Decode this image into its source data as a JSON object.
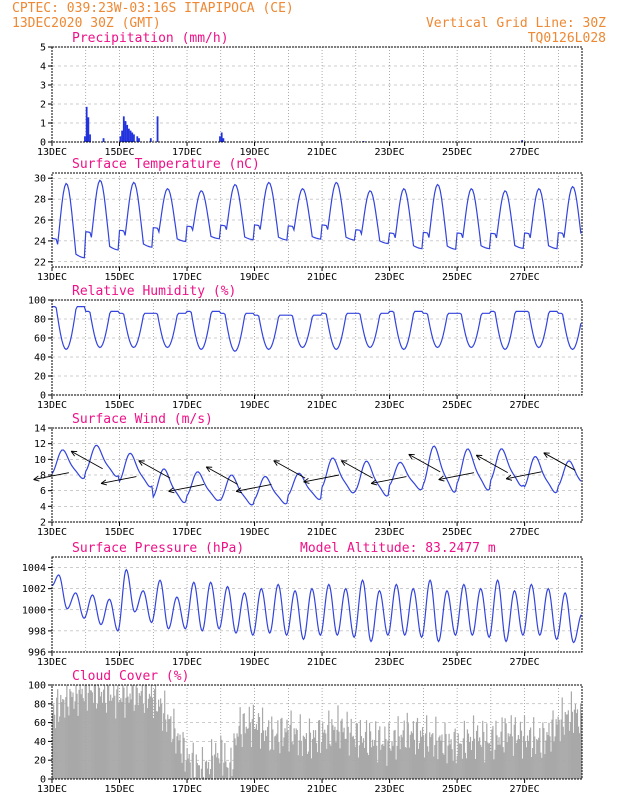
{
  "header": {
    "station": "CPTEC:  039:23W-03:16S  ITAPIPOCA (CE)",
    "date": "13DEC2020 30Z (GMT)",
    "grid_note": "Vertical Grid Line: 30Z",
    "code": "TQ0126L028"
  },
  "colors": {
    "line": "#3344dd",
    "bar": "#2233dd",
    "cloud": "#a8a8a8",
    "title": "#ee1188",
    "header": "#ee8833"
  },
  "chart_data": [
    {
      "id": "precip",
      "type": "bar",
      "title": "Precipitation (mm/h)",
      "ylim": [
        0,
        5
      ],
      "yticks": [
        0,
        1,
        2,
        3,
        4,
        5
      ],
      "xlabels": [
        "13DEC",
        "15DEC",
        "17DEC",
        "19DEC",
        "21DEC",
        "23DEC",
        "25DEC",
        "27DEC"
      ],
      "x_days": [
        0,
        1,
        2,
        3,
        4,
        5,
        6,
        7,
        8,
        9,
        10,
        11,
        12,
        13,
        14,
        15,
        16,
        17
      ],
      "bars": [
        {
          "x": 0.95,
          "v": 0.3
        },
        {
          "x": 1.0,
          "v": 1.85
        },
        {
          "x": 1.05,
          "v": 1.3
        },
        {
          "x": 1.1,
          "v": 0.4
        },
        {
          "x": 1.5,
          "v": 0.2
        },
        {
          "x": 2.0,
          "v": 0.3
        },
        {
          "x": 2.05,
          "v": 0.6
        },
        {
          "x": 2.1,
          "v": 1.35
        },
        {
          "x": 2.15,
          "v": 1.1
        },
        {
          "x": 2.2,
          "v": 0.9
        },
        {
          "x": 2.25,
          "v": 0.7
        },
        {
          "x": 2.3,
          "v": 0.6
        },
        {
          "x": 2.35,
          "v": 0.5
        },
        {
          "x": 2.4,
          "v": 0.4
        },
        {
          "x": 2.5,
          "v": 0.3
        },
        {
          "x": 2.55,
          "v": 0.2
        },
        {
          "x": 2.9,
          "v": 0.2
        },
        {
          "x": 3.1,
          "v": 1.35
        },
        {
          "x": 4.95,
          "v": 0.3
        },
        {
          "x": 5.0,
          "v": 0.5
        },
        {
          "x": 5.05,
          "v": 0.2
        },
        {
          "x": 9.2,
          "v": 0.05
        },
        {
          "x": 13.9,
          "v": 0.1
        }
      ]
    },
    {
      "id": "temp",
      "type": "line",
      "title": "Surface Temperature (nC)",
      "ylim": [
        21.5,
        30.5
      ],
      "yticks": [
        22,
        24,
        26,
        28,
        30
      ],
      "xlabels": [
        "13DEC",
        "15DEC",
        "17DEC",
        "19DEC",
        "21DEC",
        "23DEC",
        "25DEC",
        "27DEC"
      ],
      "base": 25.0,
      "min": [
        23.3,
        24.0,
        24.2,
        24.6,
        24.8,
        24.8,
        24.8,
        24.8,
        24.8,
        24.4,
        24.0,
        24.0,
        24.0,
        24.0,
        24.0,
        24.0
      ],
      "max": [
        29.5,
        29.8,
        29.6,
        29.0,
        28.8,
        29.4,
        29.6,
        29.0,
        29.6,
        28.8,
        29.0,
        29.4,
        29.0,
        28.8,
        29.0,
        29.2
      ]
    },
    {
      "id": "rh",
      "type": "line",
      "title": "Relative Humidity (%)",
      "ylim": [
        0,
        100
      ],
      "yticks": [
        0,
        20,
        40,
        60,
        80,
        100
      ],
      "xlabels": [
        "13DEC",
        "15DEC",
        "17DEC",
        "19DEC",
        "21DEC",
        "23DEC",
        "25DEC",
        "27DEC"
      ],
      "base": 68,
      "min": [
        48,
        50,
        50,
        50,
        48,
        46,
        48,
        50,
        48,
        50,
        48,
        50,
        50,
        48,
        50,
        48
      ],
      "max": [
        93,
        88,
        86,
        86,
        88,
        86,
        84,
        84,
        86,
        86,
        88,
        86,
        86,
        88,
        88,
        86
      ]
    },
    {
      "id": "wind",
      "type": "line",
      "title": "Surface Wind (m/s)",
      "ylim": [
        2,
        14
      ],
      "yticks": [
        2,
        4,
        6,
        8,
        10,
        12,
        14
      ],
      "xlabels": [
        "13DEC",
        "15DEC",
        "17DEC",
        "19DEC",
        "21DEC",
        "23DEC",
        "25DEC",
        "27DEC"
      ],
      "base": 7,
      "min": [
        6.8,
        7.0,
        5.6,
        3.6,
        4.0,
        3.4,
        3.6,
        4.2,
        4.8,
        4.4,
        5.4,
        4.6,
        5.0,
        5.6,
        4.8,
        5.2
      ],
      "max": [
        11.4,
        12.0,
        11.0,
        9.0,
        8.6,
        8.2,
        8.0,
        8.4,
        10.4,
        10.0,
        9.8,
        12.0,
        11.6,
        11.6,
        10.6,
        10.0
      ],
      "arrow_y": [
        8.3,
        8.8,
        7.8,
        7.6,
        6.8,
        6.8,
        6.8,
        7.6,
        8.0,
        7.6,
        7.8,
        8.4,
        8.3,
        8.3,
        8.4,
        8.6
      ]
    },
    {
      "id": "pres",
      "type": "line",
      "title": "Surface Pressure (hPa)",
      "annotation": "Model Altitude: 83.2477 m",
      "ylim": [
        996,
        1005
      ],
      "yticks": [
        996,
        998,
        1000,
        1002,
        1004
      ],
      "xlabels": [
        "13DEC",
        "15DEC",
        "17DEC",
        "19DEC",
        "21DEC",
        "23DEC",
        "25DEC",
        "27DEC"
      ],
      "series": [
        {
          "t": 0.0,
          "v": 1002.3
        },
        {
          "t": 0.4,
          "v": 1003.3
        },
        {
          "t": 0.9,
          "v": 1000.1
        },
        {
          "t": 1.4,
          "v": 1001.6
        },
        {
          "t": 1.9,
          "v": 999.2
        },
        {
          "t": 2.4,
          "v": 1001.4
        },
        {
          "t": 2.9,
          "v": 998.6
        },
        {
          "t": 3.4,
          "v": 1001.0
        },
        {
          "t": 3.9,
          "v": 998.0
        },
        {
          "t": 4.4,
          "v": 1003.8
        },
        {
          "t": 4.9,
          "v": 999.8
        },
        {
          "t": 5.4,
          "v": 1001.8
        },
        {
          "t": 5.9,
          "v": 998.8
        },
        {
          "t": 6.4,
          "v": 1002.8
        },
        {
          "t": 6.9,
          "v": 998.2
        },
        {
          "t": 7.4,
          "v": 1001.2
        },
        {
          "t": 7.9,
          "v": 998.2
        },
        {
          "t": 8.4,
          "v": 1002.6
        },
        {
          "t": 8.9,
          "v": 998.0
        },
        {
          "t": 9.4,
          "v": 1002.6
        },
        {
          "t": 9.9,
          "v": 998.2
        },
        {
          "t": 10.4,
          "v": 1002.2
        },
        {
          "t": 10.9,
          "v": 997.8
        },
        {
          "t": 11.4,
          "v": 1001.6
        },
        {
          "t": 11.9,
          "v": 997.6
        },
        {
          "t": 12.4,
          "v": 1002.0
        },
        {
          "t": 12.9,
          "v": 997.8
        },
        {
          "t": 13.4,
          "v": 1002.4
        },
        {
          "t": 13.9,
          "v": 997.6
        },
        {
          "t": 14.4,
          "v": 1001.8
        },
        {
          "t": 14.9,
          "v": 997.2
        },
        {
          "t": 15.4,
          "v": 1002.0
        },
        {
          "t": 15.9,
          "v": 997.6
        },
        {
          "t": 16.4,
          "v": 1002.4
        },
        {
          "t": 16.9,
          "v": 997.6
        },
        {
          "t": 17.4,
          "v": 1002.0
        },
        {
          "t": 17.9,
          "v": 997.4
        },
        {
          "t": 18.4,
          "v": 1002.8
        },
        {
          "t": 18.9,
          "v": 997.0
        },
        {
          "t": 19.4,
          "v": 1001.8
        },
        {
          "t": 19.9,
          "v": 997.6
        },
        {
          "t": 20.4,
          "v": 1002.4
        },
        {
          "t": 20.9,
          "v": 997.6
        },
        {
          "t": 21.4,
          "v": 1002.0
        },
        {
          "t": 21.9,
          "v": 997.4
        },
        {
          "t": 22.4,
          "v": 1002.8
        },
        {
          "t": 22.9,
          "v": 997.0
        },
        {
          "t": 23.4,
          "v": 1001.8
        },
        {
          "t": 23.9,
          "v": 997.6
        },
        {
          "t": 24.4,
          "v": 1002.4
        },
        {
          "t": 24.9,
          "v": 997.6
        },
        {
          "t": 25.4,
          "v": 1002.0
        },
        {
          "t": 25.9,
          "v": 997.4
        },
        {
          "t": 26.4,
          "v": 1002.8
        },
        {
          "t": 26.9,
          "v": 997.0
        },
        {
          "t": 27.4,
          "v": 1001.8
        },
        {
          "t": 27.9,
          "v": 997.6
        },
        {
          "t": 28.4,
          "v": 1002.4
        },
        {
          "t": 28.9,
          "v": 997.6
        },
        {
          "t": 29.4,
          "v": 1002.0
        },
        {
          "t": 29.9,
          "v": 997.2
        },
        {
          "t": 30.4,
          "v": 1001.6
        },
        {
          "t": 30.9,
          "v": 996.9
        },
        {
          "t": 31.4,
          "v": 999.6
        }
      ]
    },
    {
      "id": "cloud",
      "type": "area",
      "title": "Cloud Cover (%)",
      "ylim": [
        0,
        100
      ],
      "yticks": [
        0,
        20,
        40,
        60,
        80,
        100
      ],
      "xlabels": [
        "13DEC",
        "15DEC",
        "17DEC",
        "19DEC",
        "21DEC",
        "23DEC",
        "25DEC",
        "27DEC"
      ],
      "keypoints": [
        {
          "t": 0.0,
          "v": 70
        },
        {
          "t": 0.8,
          "v": 85
        },
        {
          "t": 1.5,
          "v": 90
        },
        {
          "t": 2.0,
          "v": 96
        },
        {
          "t": 3.0,
          "v": 92
        },
        {
          "t": 4.0,
          "v": 88
        },
        {
          "t": 5.0,
          "v": 92
        },
        {
          "t": 6.0,
          "v": 88
        },
        {
          "t": 6.8,
          "v": 65
        },
        {
          "t": 7.5,
          "v": 40
        },
        {
          "t": 8.0,
          "v": 22
        },
        {
          "t": 9.0,
          "v": 8
        },
        {
          "t": 9.5,
          "v": 22
        },
        {
          "t": 10.0,
          "v": 30
        },
        {
          "t": 10.5,
          "v": 8
        },
        {
          "t": 11.0,
          "v": 55
        },
        {
          "t": 12.0,
          "v": 60
        },
        {
          "t": 13.0,
          "v": 45
        },
        {
          "t": 14.0,
          "v": 52
        },
        {
          "t": 15.0,
          "v": 40
        },
        {
          "t": 16.0,
          "v": 48
        },
        {
          "t": 17.0,
          "v": 55
        },
        {
          "t": 18.0,
          "v": 45
        },
        {
          "t": 19.0,
          "v": 42
        },
        {
          "t": 20.0,
          "v": 38
        },
        {
          "t": 21.0,
          "v": 50
        },
        {
          "t": 22.0,
          "v": 45
        },
        {
          "t": 23.0,
          "v": 40
        },
        {
          "t": 24.0,
          "v": 35
        },
        {
          "t": 25.0,
          "v": 45
        },
        {
          "t": 26.0,
          "v": 40
        },
        {
          "t": 27.0,
          "v": 50
        },
        {
          "t": 28.0,
          "v": 45
        },
        {
          "t": 29.0,
          "v": 40
        },
        {
          "t": 30.0,
          "v": 60
        },
        {
          "t": 31.0,
          "v": 72
        },
        {
          "t": 31.4,
          "v": 55
        }
      ]
    }
  ]
}
